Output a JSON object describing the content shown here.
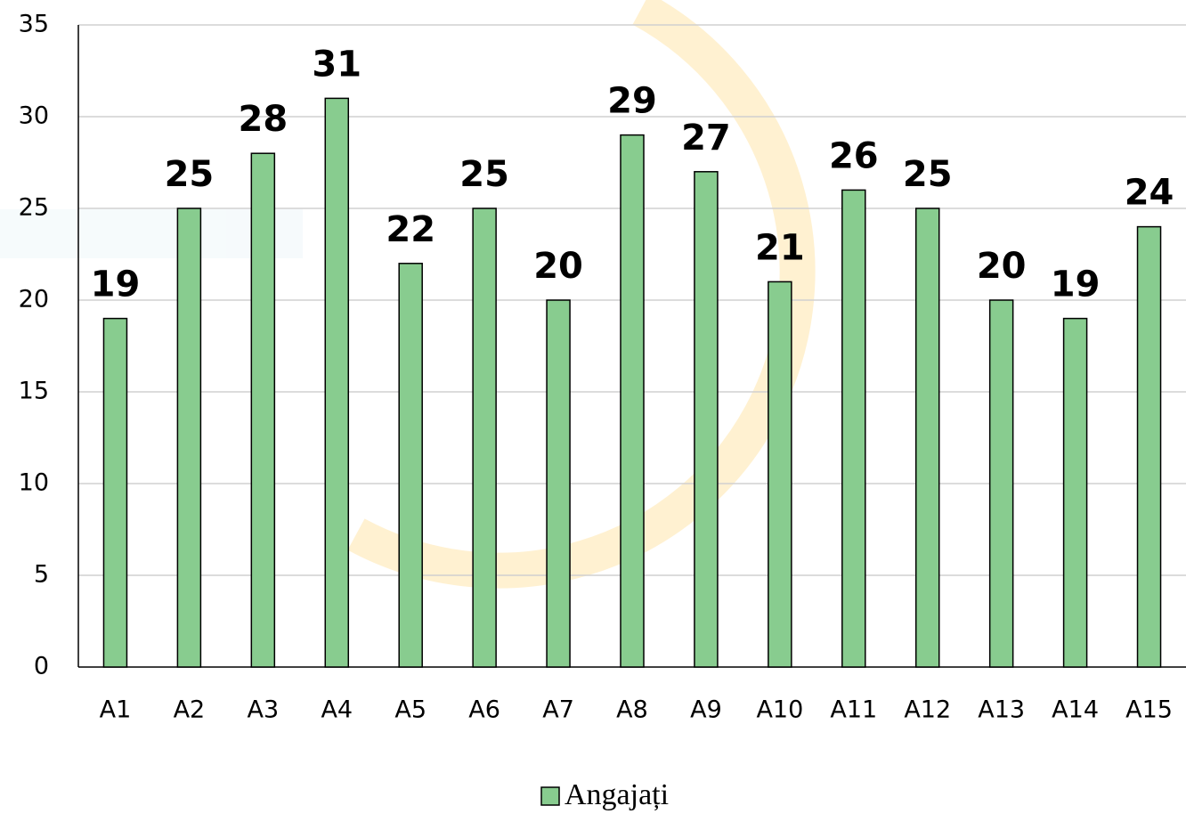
{
  "chart_data": {
    "type": "bar",
    "categories": [
      "A1",
      "A2",
      "A3",
      "A4",
      "A5",
      "A6",
      "A7",
      "A8",
      "A9",
      "A10",
      "A11",
      "A12",
      "A13",
      "A14",
      "A15"
    ],
    "series": [
      {
        "name": "Angajați",
        "color": "#88cc8f",
        "values": [
          19,
          25,
          28,
          31,
          22,
          25,
          20,
          29,
          27,
          21,
          26,
          25,
          20,
          19,
          24
        ]
      }
    ],
    "ylim": [
      0,
      35
    ],
    "yticks": [
      0,
      5,
      10,
      15,
      20,
      25,
      30,
      35
    ],
    "grid": true,
    "legend": "bottom",
    "data_labels": true
  }
}
